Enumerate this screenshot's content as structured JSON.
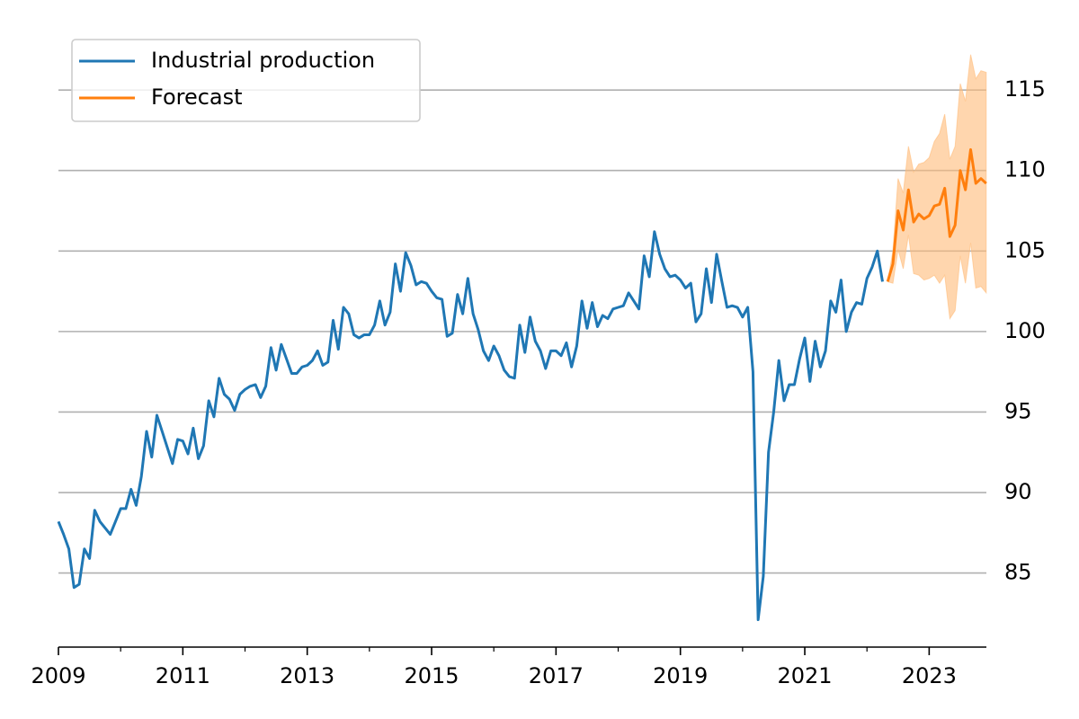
{
  "chart_data": {
    "type": "line",
    "xlim": [
      2009,
      2023.92
    ],
    "xticks": [
      2009,
      2011,
      2013,
      2015,
      2017,
      2019,
      2021,
      2023
    ],
    "xminor_ticks": [
      2010,
      2012,
      2014,
      2016,
      2018,
      2020,
      2022
    ],
    "ylim": [
      80.4,
      117.8
    ],
    "yticks": [
      85,
      90,
      95,
      100,
      105,
      110,
      115
    ],
    "y_axis_side": "right",
    "grid": "y",
    "legend": "upper left",
    "series": [
      {
        "name": "Industrial production",
        "color": "#1f77b4",
        "x": [
          2009,
          2009.083,
          2009.167,
          2009.25,
          2009.333,
          2009.417,
          2009.5,
          2009.583,
          2009.667,
          2009.75,
          2009.833,
          2009.917,
          2010,
          2010.083,
          2010.167,
          2010.25,
          2010.333,
          2010.417,
          2010.5,
          2010.583,
          2010.667,
          2010.75,
          2010.833,
          2010.917,
          2011,
          2011.083,
          2011.167,
          2011.25,
          2011.333,
          2011.417,
          2011.5,
          2011.583,
          2011.667,
          2011.75,
          2011.833,
          2011.917,
          2012,
          2012.083,
          2012.167,
          2012.25,
          2012.333,
          2012.417,
          2012.5,
          2012.583,
          2012.667,
          2012.75,
          2012.833,
          2012.917,
          2013,
          2013.083,
          2013.167,
          2013.25,
          2013.333,
          2013.417,
          2013.5,
          2013.583,
          2013.667,
          2013.75,
          2013.833,
          2013.917,
          2014,
          2014.083,
          2014.167,
          2014.25,
          2014.333,
          2014.417,
          2014.5,
          2014.583,
          2014.667,
          2014.75,
          2014.833,
          2014.917,
          2015,
          2015.083,
          2015.167,
          2015.25,
          2015.333,
          2015.417,
          2015.5,
          2015.583,
          2015.667,
          2015.75,
          2015.833,
          2015.917,
          2016,
          2016.083,
          2016.167,
          2016.25,
          2016.333,
          2016.417,
          2016.5,
          2016.583,
          2016.667,
          2016.75,
          2016.833,
          2016.917,
          2017,
          2017.083,
          2017.167,
          2017.25,
          2017.333,
          2017.417,
          2017.5,
          2017.583,
          2017.667,
          2017.75,
          2017.833,
          2017.917,
          2018,
          2018.083,
          2018.167,
          2018.25,
          2018.333,
          2018.417,
          2018.5,
          2018.583,
          2018.667,
          2018.75,
          2018.833,
          2018.917,
          2019,
          2019.083,
          2019.167,
          2019.25,
          2019.333,
          2019.417,
          2019.5,
          2019.583,
          2019.667,
          2019.75,
          2019.833,
          2019.917,
          2020,
          2020.083,
          2020.167,
          2020.25,
          2020.333,
          2020.417,
          2020.5,
          2020.583,
          2020.667,
          2020.75,
          2020.833,
          2020.917,
          2021,
          2021.083,
          2021.167,
          2021.25,
          2021.333,
          2021.417,
          2021.5,
          2021.583,
          2021.667,
          2021.75,
          2021.833,
          2021.917,
          2022,
          2022.083,
          2022.167,
          2022.25
        ],
        "values": [
          88.2,
          87.4,
          86.5,
          84.1,
          84.3,
          86.5,
          85.9,
          88.9,
          88.2,
          87.8,
          87.4,
          88.2,
          89.0,
          89.0,
          90.2,
          89.2,
          91.0,
          93.8,
          92.2,
          94.8,
          93.8,
          92.8,
          91.8,
          93.3,
          93.2,
          92.4,
          94.0,
          92.1,
          92.9,
          95.7,
          94.7,
          97.1,
          96.1,
          95.8,
          95.1,
          96.1,
          96.4,
          96.6,
          96.7,
          95.9,
          96.6,
          99.0,
          97.6,
          99.2,
          98.3,
          97.4,
          97.4,
          97.8,
          97.9,
          98.2,
          98.8,
          97.9,
          98.1,
          100.7,
          98.9,
          101.5,
          101.1,
          99.8,
          99.6,
          99.8,
          99.8,
          100.4,
          101.9,
          100.4,
          101.2,
          104.2,
          102.5,
          104.9,
          104.1,
          102.9,
          103.1,
          103.0,
          102.5,
          102.1,
          102.0,
          99.7,
          99.9,
          102.3,
          101.1,
          103.3,
          101.1,
          100.1,
          98.8,
          98.2,
          99.1,
          98.5,
          97.6,
          97.2,
          97.1,
          100.4,
          98.7,
          100.9,
          99.4,
          98.8,
          97.7,
          98.8,
          98.8,
          98.5,
          99.3,
          97.8,
          99.1,
          101.9,
          100.2,
          101.8,
          100.3,
          101.0,
          100.8,
          101.4,
          101.5,
          101.6,
          102.4,
          101.9,
          101.4,
          104.7,
          103.4,
          106.2,
          104.8,
          103.9,
          103.4,
          103.5,
          103.2,
          102.7,
          103.0,
          100.6,
          101.1,
          103.9,
          101.8,
          104.8,
          103.1,
          101.5,
          101.6,
          101.5,
          100.9,
          101.5,
          97.5,
          82.1,
          84.8,
          92.5,
          95.0,
          98.2,
          95.7,
          96.7,
          96.7,
          98.3,
          99.6,
          96.9,
          99.4,
          97.8,
          98.8,
          101.9,
          101.2,
          103.2,
          100.0,
          101.2,
          101.8,
          101.7,
          103.3,
          104.0,
          105.0,
          103.1
        ]
      },
      {
        "name": "Forecast",
        "color": "#ff7f0e",
        "band_color": "#ffbb78",
        "x": [
          2022.333,
          2022.417,
          2022.5,
          2022.583,
          2022.667,
          2022.75,
          2022.833,
          2022.917,
          2023,
          2023.083,
          2023.167,
          2023.25,
          2023.333,
          2023.417,
          2023.5,
          2023.583,
          2023.667,
          2023.75,
          2023.833,
          2023.917
        ],
        "values": [
          103.1,
          104.2,
          107.5,
          106.3,
          108.8,
          106.8,
          107.3,
          107.0,
          107.2,
          107.8,
          107.9,
          108.9,
          105.9,
          106.6,
          110.0,
          108.8,
          111.3,
          109.2,
          109.5,
          109.2
        ],
        "upper": [
          103.1,
          105.0,
          109.5,
          108.6,
          111.5,
          109.9,
          110.4,
          110.5,
          110.8,
          111.8,
          112.3,
          113.5,
          110.7,
          111.5,
          115.4,
          114.3,
          117.2,
          115.7,
          116.2,
          116.1
        ],
        "lower": [
          103.1,
          103.0,
          105.1,
          103.9,
          106.0,
          103.6,
          103.5,
          103.2,
          103.3,
          103.5,
          103.0,
          103.5,
          100.8,
          101.3,
          104.7,
          103.0,
          105.5,
          102.7,
          102.8,
          102.4
        ]
      }
    ]
  }
}
